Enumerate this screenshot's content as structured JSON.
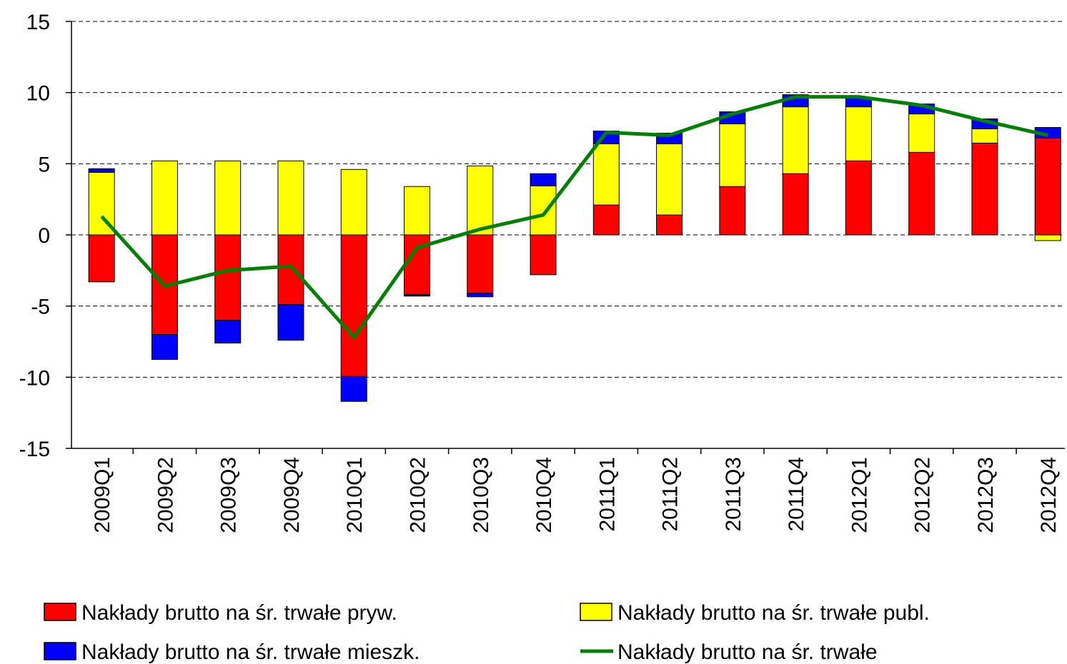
{
  "chart_data": {
    "type": "bar",
    "categories": [
      "2009Q1",
      "2009Q2",
      "2009Q3",
      "2009Q4",
      "2010Q1",
      "2010Q2",
      "2010Q3",
      "2010Q4",
      "2011Q1",
      "2011Q2",
      "2011Q3",
      "2011Q4",
      "2012Q1",
      "2012Q2",
      "2012Q3",
      "2012Q4"
    ],
    "series": [
      {
        "name": "Nakłady brutto na śr. trwałe pryw.",
        "color": "#ff0000",
        "type": "bar",
        "values": [
          -3.3,
          -7.0,
          -6.0,
          -4.9,
          -9.95,
          -4.2,
          -4.1,
          -2.8,
          2.1,
          1.4,
          3.4,
          4.3,
          5.2,
          5.8,
          6.45,
          6.8
        ]
      },
      {
        "name": "Nakłady brutto na śr. trwałe publ.",
        "color": "#ffff00",
        "type": "bar",
        "values": [
          4.4,
          5.2,
          5.2,
          5.2,
          4.6,
          3.4,
          4.85,
          3.45,
          4.3,
          5.0,
          4.4,
          4.7,
          3.8,
          2.7,
          1.0,
          -0.4
        ]
      },
      {
        "name": "Nakłady brutto na śr. trwałe mieszk.",
        "color": "#0000ff",
        "type": "bar",
        "values": [
          0.25,
          -1.75,
          -1.6,
          -2.5,
          -1.75,
          -0.1,
          -0.25,
          0.85,
          0.9,
          0.75,
          0.85,
          0.85,
          0.65,
          0.7,
          0.7,
          0.75
        ]
      },
      {
        "name": "Nakłady brutto na śr. trwałe",
        "color": "#008000",
        "type": "line",
        "values": [
          1.3,
          -3.6,
          -2.5,
          -2.2,
          -7.2,
          -0.9,
          0.4,
          1.4,
          7.2,
          7.0,
          8.5,
          9.7,
          9.7,
          9.1,
          8.0,
          7.0
        ]
      }
    ],
    "ylim": [
      -15,
      15
    ],
    "yticks": [
      -15,
      -10,
      -5,
      0,
      5,
      10,
      15
    ],
    "grid": true,
    "stacked": true,
    "legend": "bottom"
  }
}
